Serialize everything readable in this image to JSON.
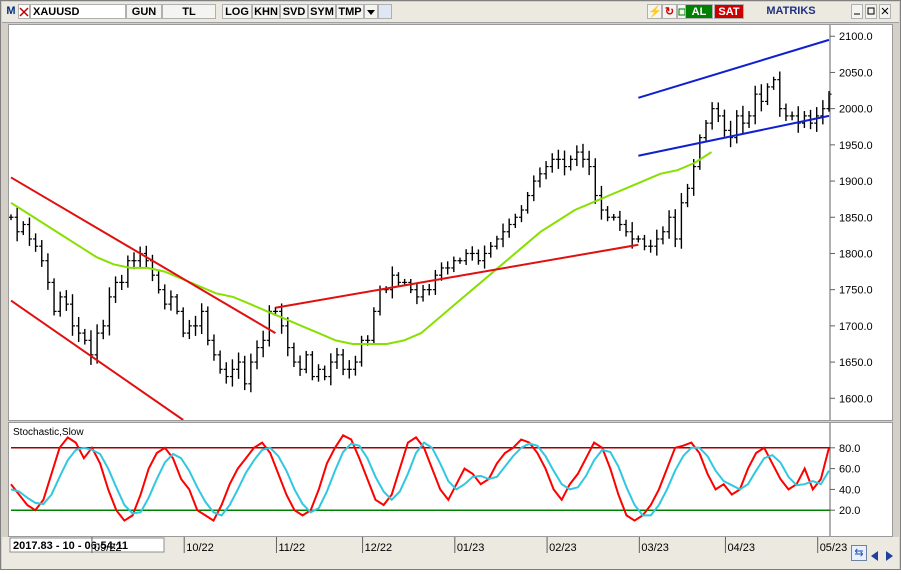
{
  "toolbar": {
    "app_icon": "M",
    "symbol": "XAUUSD",
    "buttons": [
      "GUN",
      "TL",
      "LOG",
      "KHN",
      "SVD",
      "SYM",
      "TMP"
    ],
    "buy": "AL",
    "sell": "SAT",
    "brand": "MATRIKS"
  },
  "indicator_label": "Stochastic,Slow",
  "status": "2017.83 - 10 - 06:54:11",
  "chart_data": [
    {
      "type": "ohlc",
      "title": "XAUUSD",
      "yaxis_ticks": [
        1600,
        1650,
        1700,
        1750,
        1800,
        1850,
        1900,
        1950,
        2000,
        2050,
        2100
      ],
      "ylim": [
        1570,
        2110
      ],
      "x_ticks": [
        "09/22",
        "10/22",
        "11/22",
        "12/22",
        "01/23",
        "02/23",
        "03/23",
        "04/23",
        "05/23"
      ],
      "close_path": [
        1850,
        1830,
        1840,
        1820,
        1810,
        1790,
        1760,
        1720,
        1740,
        1730,
        1700,
        1690,
        1680,
        1660,
        1690,
        1700,
        1740,
        1760,
        1760,
        1790,
        1790,
        1800,
        1790,
        1770,
        1750,
        1730,
        1740,
        1720,
        1690,
        1700,
        1700,
        1720,
        1680,
        1660,
        1640,
        1630,
        1640,
        1650,
        1620,
        1650,
        1670,
        1680,
        1720,
        1720,
        1700,
        1670,
        1650,
        1640,
        1660,
        1630,
        1640,
        1630,
        1650,
        1660,
        1640,
        1640,
        1650,
        1680,
        1680,
        1720,
        1750,
        1750,
        1770,
        1760,
        1760,
        1750,
        1740,
        1750,
        1750,
        1770,
        1780,
        1780,
        1790,
        1790,
        1800,
        1800,
        1790,
        1800,
        1810,
        1820,
        1830,
        1840,
        1850,
        1860,
        1880,
        1900,
        1910,
        1920,
        1930,
        1930,
        1920,
        1930,
        1940,
        1930,
        1920,
        1880,
        1860,
        1850,
        1850,
        1840,
        1830,
        1820,
        1820,
        1810,
        1810,
        1820,
        1830,
        1850,
        1820,
        1870,
        1890,
        1920,
        1960,
        1980,
        2000,
        1990,
        1970,
        1960,
        1990,
        1980,
        1990,
        2020,
        2010,
        2030,
        2040,
        2000,
        1990,
        1990,
        1980,
        1990,
        1980,
        1990,
        2000,
        2020
      ],
      "moving_average": [
        1870,
        1855,
        1840,
        1825,
        1810,
        1795,
        1785,
        1780,
        1780,
        1775,
        1765,
        1755,
        1745,
        1740,
        1730,
        1720,
        1710,
        1700,
        1690,
        1680,
        1675,
        1675,
        1675,
        1680,
        1690,
        1710,
        1730,
        1750,
        1770,
        1790,
        1810,
        1830,
        1845,
        1860,
        1870,
        1880,
        1890,
        1900,
        1910,
        1915,
        1925,
        1940
      ],
      "channel_lines": [
        {
          "name": "downtrend upper",
          "color": "#e01010",
          "from": [
            "start",
            1905
          ],
          "to": [
            "11/22",
            1690
          ]
        },
        {
          "name": "downtrend lower",
          "color": "#e01010",
          "from": [
            "start",
            1735
          ],
          "to": [
            "10/22",
            1570
          ]
        },
        {
          "name": "uptrend support",
          "color": "#e01010",
          "from": [
            "11/22",
            1725
          ],
          "to": [
            "03/23",
            1812
          ]
        },
        {
          "name": "rising channel upper",
          "color": "#1020d0",
          "from": [
            "03/23",
            2015
          ],
          "to": [
            "end",
            2095
          ]
        },
        {
          "name": "rising channel lower",
          "color": "#1020d0",
          "from": [
            "03/23",
            1935
          ],
          "to": [
            "end",
            1990
          ]
        }
      ],
      "horizontal_marker": 2020,
      "colors": {
        "bars": "#000000",
        "moving_average": "#88e000",
        "channel_red": "#e01010",
        "channel_blue": "#1020d0"
      }
    },
    {
      "type": "line",
      "title": "Stochastic,Slow",
      "yaxis_ticks": [
        20,
        40,
        60,
        80
      ],
      "ylim": [
        0,
        100
      ],
      "levels": [
        {
          "value": 80,
          "color": "#a00000"
        },
        {
          "value": 20,
          "color": "#008000"
        }
      ],
      "series": [
        {
          "color": "#ff0000",
          "values": [
            45,
            35,
            25,
            20,
            30,
            55,
            80,
            90,
            85,
            70,
            80,
            65,
            40,
            20,
            10,
            15,
            35,
            60,
            75,
            80,
            70,
            50,
            40,
            20,
            15,
            10,
            25,
            45,
            60,
            70,
            80,
            85,
            75,
            55,
            35,
            20,
            15,
            20,
            40,
            65,
            80,
            92,
            88,
            70,
            50,
            30,
            25,
            35,
            60,
            85,
            90,
            80,
            60,
            40,
            30,
            45,
            60,
            55,
            45,
            50,
            65,
            75,
            80,
            88,
            85,
            75,
            60,
            40,
            30,
            45,
            55,
            70,
            85,
            80,
            60,
            35,
            15,
            10,
            15,
            25,
            40,
            60,
            80,
            82,
            85,
            75,
            55,
            40,
            45,
            35,
            40,
            60,
            75,
            80,
            65,
            50,
            40,
            45,
            60,
            40,
            50,
            80
          ]
        },
        {
          "color": "#30c8e0",
          "values": [
            40,
            38,
            32,
            27,
            26,
            35,
            52,
            68,
            78,
            80,
            78,
            74,
            60,
            42,
            25,
            17,
            18,
            32,
            50,
            66,
            74,
            70,
            58,
            42,
            28,
            18,
            15,
            25,
            40,
            56,
            68,
            78,
            80,
            72,
            58,
            40,
            26,
            18,
            22,
            38,
            58,
            76,
            84,
            82,
            70,
            52,
            38,
            30,
            38,
            55,
            75,
            85,
            80,
            65,
            48,
            40,
            45,
            52,
            53,
            50,
            52,
            62,
            72,
            80,
            84,
            82,
            72,
            58,
            45,
            40,
            42,
            53,
            68,
            78,
            76,
            62,
            42,
            25,
            15,
            15,
            25,
            40,
            58,
            72,
            80,
            80,
            72,
            58,
            48,
            44,
            40,
            45,
            58,
            70,
            73,
            66,
            52,
            44,
            45,
            48,
            45,
            58
          ]
        }
      ]
    }
  ]
}
